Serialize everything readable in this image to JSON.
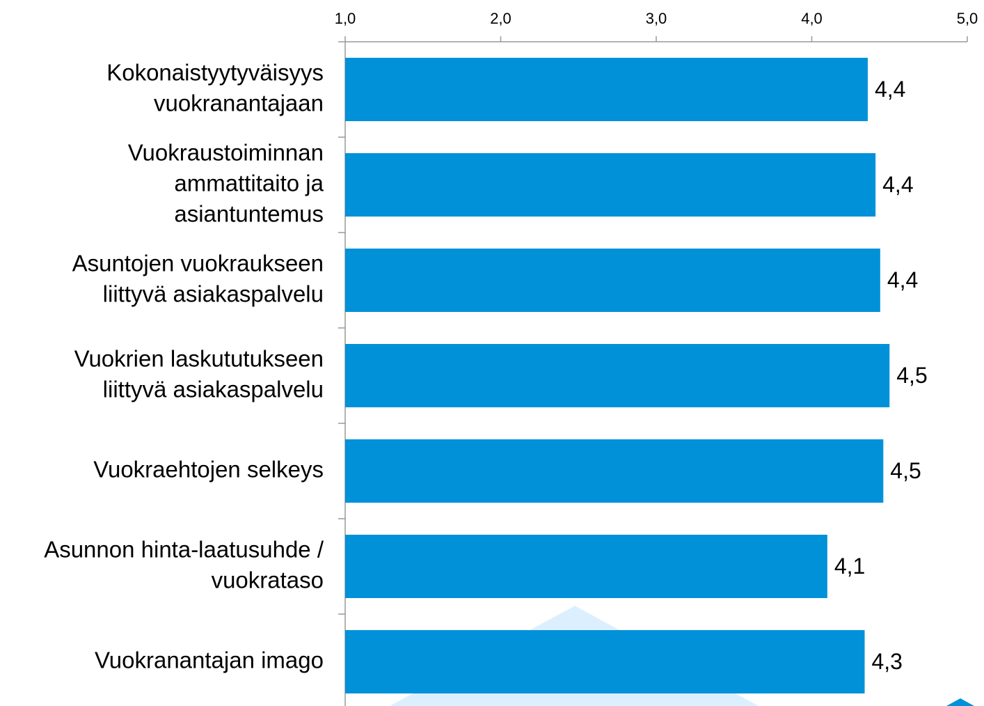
{
  "chart_data": {
    "type": "barh",
    "categories": [
      [
        "Kokonaistyytyväisyys",
        "vuokranantajaan"
      ],
      [
        "Vuokraustoiminnan",
        "ammattitaito ja",
        "asiantuntemus"
      ],
      [
        "Asuntojen vuokraukseen",
        "liittyvä asiakaspalvelu"
      ],
      [
        "Vuokrien laskututukseen",
        "liittyvä asiakaspalvelu"
      ],
      [
        "Vuokraehtojen selkeys"
      ],
      [
        "Asunnon hinta-laatusuhde /",
        "vuokrataso"
      ],
      [
        "Vuokranantajan imago"
      ]
    ],
    "values": [
      4.36,
      4.41,
      4.44,
      4.5,
      4.46,
      4.1,
      4.34
    ],
    "value_labels": [
      "4,4",
      "4,4",
      "4,4",
      "4,5",
      "4,5",
      "4,1",
      "4,3"
    ],
    "color": "#0091d9",
    "xlim": [
      1,
      5
    ],
    "xticks": [
      {
        "value": 1,
        "label": "1,0"
      },
      {
        "value": 2,
        "label": "2,0"
      },
      {
        "value": 3,
        "label": "3,0"
      },
      {
        "value": 4,
        "label": "4,0"
      },
      {
        "value": 5,
        "label": "5,0"
      }
    ]
  }
}
